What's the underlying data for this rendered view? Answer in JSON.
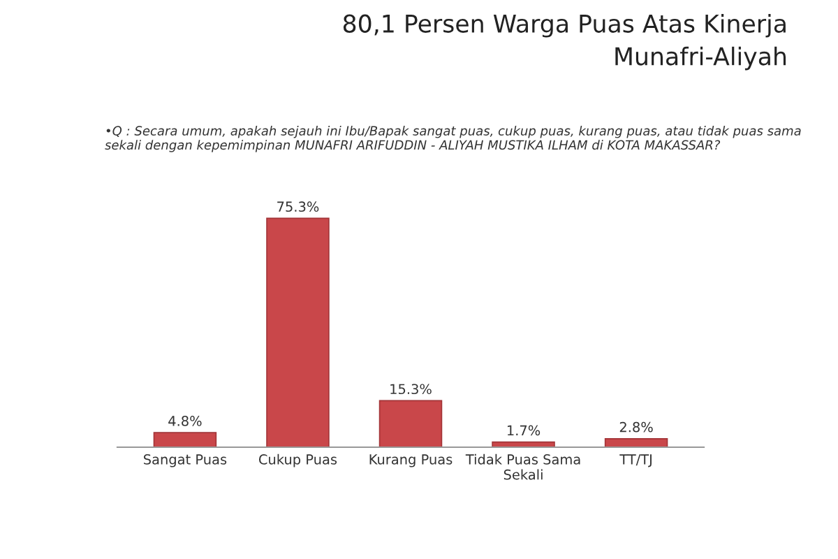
{
  "chart_data": {
    "type": "bar",
    "title": "80,1 Persen Warga Puas Atas Kinerja\nMunafri-Aliyah",
    "subtitle": "•Q : Secara umum, apakah sejauh ini Ibu/Bapak sangat puas, cukup puas, kurang puas, atau tidak puas sama sekali dengan kepemimpinan MUNAFRI ARIFUDDIN - ALIYAH MUSTIKA ILHAM di KOTA MAKASSAR?",
    "categories": [
      "Sangat Puas",
      "Cukup Puas",
      "Kurang Puas",
      "Tidak Puas Sama\nSekali",
      "TT/TJ"
    ],
    "values": [
      4.8,
      75.3,
      15.3,
      1.7,
      2.8
    ],
    "value_labels": [
      "4.8%",
      "75.3%",
      "15.3%",
      "1.7%",
      "2.8%"
    ],
    "color": "#c9474a",
    "grid": false,
    "legend": false
  }
}
